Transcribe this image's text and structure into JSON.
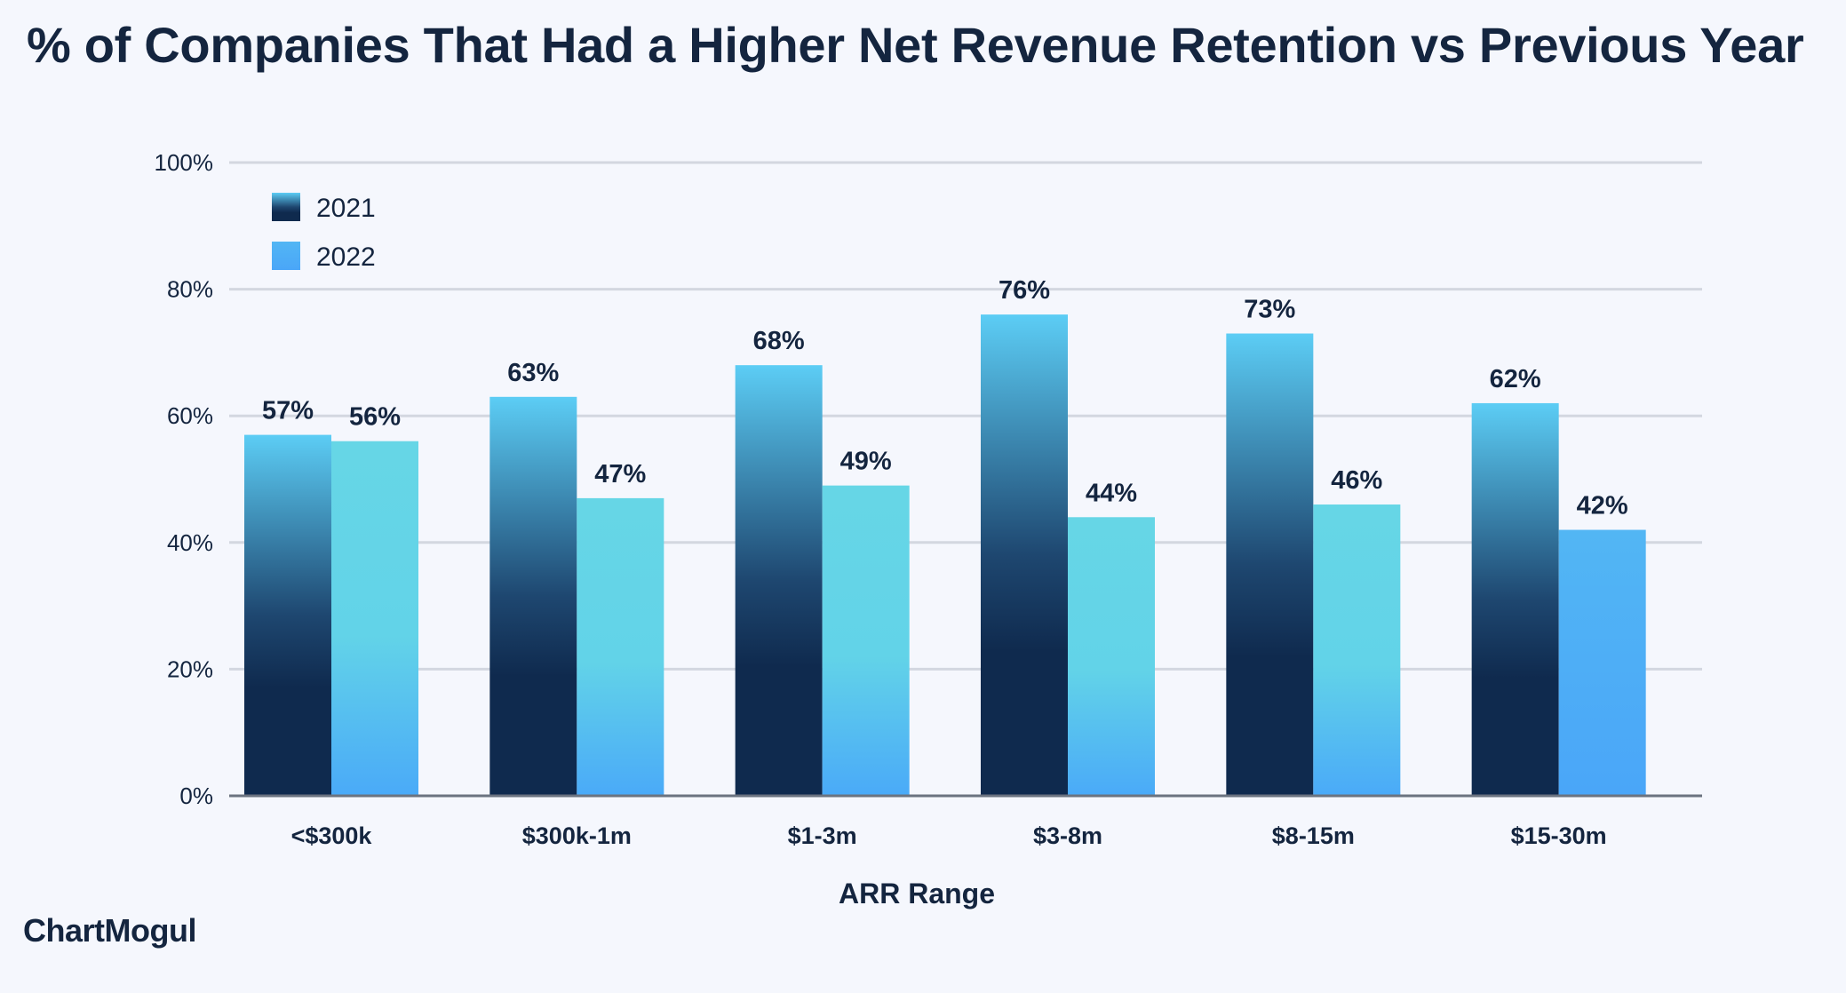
{
  "chart_data": {
    "type": "bar",
    "title": "% of Companies That Had a Higher Net Revenue Retention vs Previous Year",
    "xlabel": "ARR Range",
    "ylabel": "",
    "categories": [
      "<$300k",
      "$300k-1m",
      "$1-3m",
      "$3-8m",
      "$8-15m",
      "$15-30m"
    ],
    "series": [
      {
        "name": "2021",
        "values": [
          57,
          63,
          68,
          76,
          73,
          62
        ],
        "labels": [
          "57%",
          "63%",
          "68%",
          "76%",
          "73%",
          "62%"
        ]
      },
      {
        "name": "2022",
        "values": [
          56,
          47,
          49,
          44,
          46,
          42
        ],
        "labels": [
          "56%",
          "47%",
          "49%",
          "44%",
          "46%",
          "42%"
        ]
      }
    ],
    "ylim": [
      0,
      100
    ],
    "yticks": [
      0,
      20,
      40,
      60,
      80,
      100
    ],
    "ytick_labels": [
      "0%",
      "20%",
      "40%",
      "60%",
      "80%",
      "100%"
    ],
    "grid": true,
    "legend_position": "top-left",
    "colors": {
      "series_2021_top": "#5ccdf5",
      "series_2021_bottom": "#0f2a4e",
      "series_2022_top": "#66d6e6",
      "series_2022_bottom": "#4aaaf8",
      "grid": "#d3d7e0",
      "axis": "#6b7380"
    }
  },
  "brand": {
    "name": "ChartMogul"
  }
}
